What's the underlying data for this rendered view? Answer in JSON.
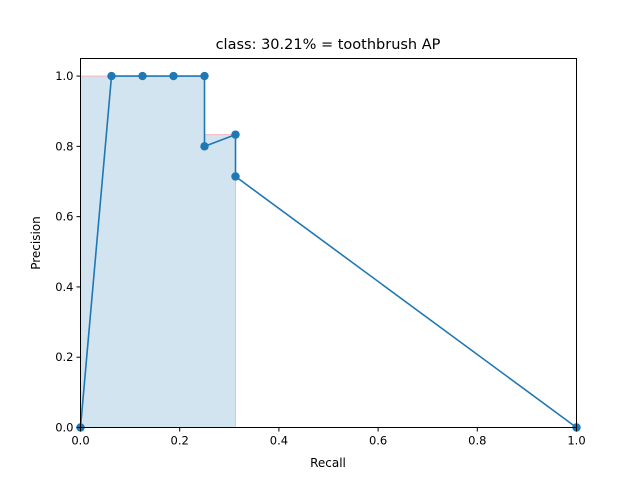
{
  "chart_data": {
    "type": "line",
    "title": "class: 30.21% = toothbrush AP",
    "xlabel": "Recall",
    "ylabel": "Precision",
    "xlim": [
      0,
      1
    ],
    "ylim": [
      0,
      1.05
    ],
    "xticks": [
      0.0,
      0.2,
      0.4,
      0.6,
      0.8,
      1.0
    ],
    "yticks": [
      0.0,
      0.2,
      0.4,
      0.6,
      0.8,
      1.0
    ],
    "xtick_labels": [
      "0.0",
      "0.2",
      "0.4",
      "0.6",
      "0.8",
      "1.0"
    ],
    "ytick_labels": [
      "0.0",
      "0.2",
      "0.4",
      "0.6",
      "0.8",
      "1.0"
    ],
    "grid": false,
    "legend": null,
    "series": [
      {
        "x": [
          0.0,
          0.0625,
          0.125,
          0.1875,
          0.25,
          0.25,
          0.3125,
          0.3125,
          1.0
        ],
        "y": [
          0.0,
          1.0,
          1.0,
          1.0,
          1.0,
          0.8,
          0.8333,
          0.7143,
          0.0
        ],
        "color": "#1f77b4",
        "markers": true
      }
    ],
    "ap_area": {
      "x": [
        0.0,
        0.0,
        0.0625,
        0.125,
        0.1875,
        0.25,
        0.25,
        0.3125,
        0.3125
      ],
      "y": [
        0.0,
        1.0,
        1.0,
        1.0,
        1.0,
        1.0,
        0.8333,
        0.8333,
        0.0
      ],
      "fill_color": "#1f77b4",
      "fill_alpha": 0.2,
      "edge_color": "#f4b6c2"
    }
  }
}
